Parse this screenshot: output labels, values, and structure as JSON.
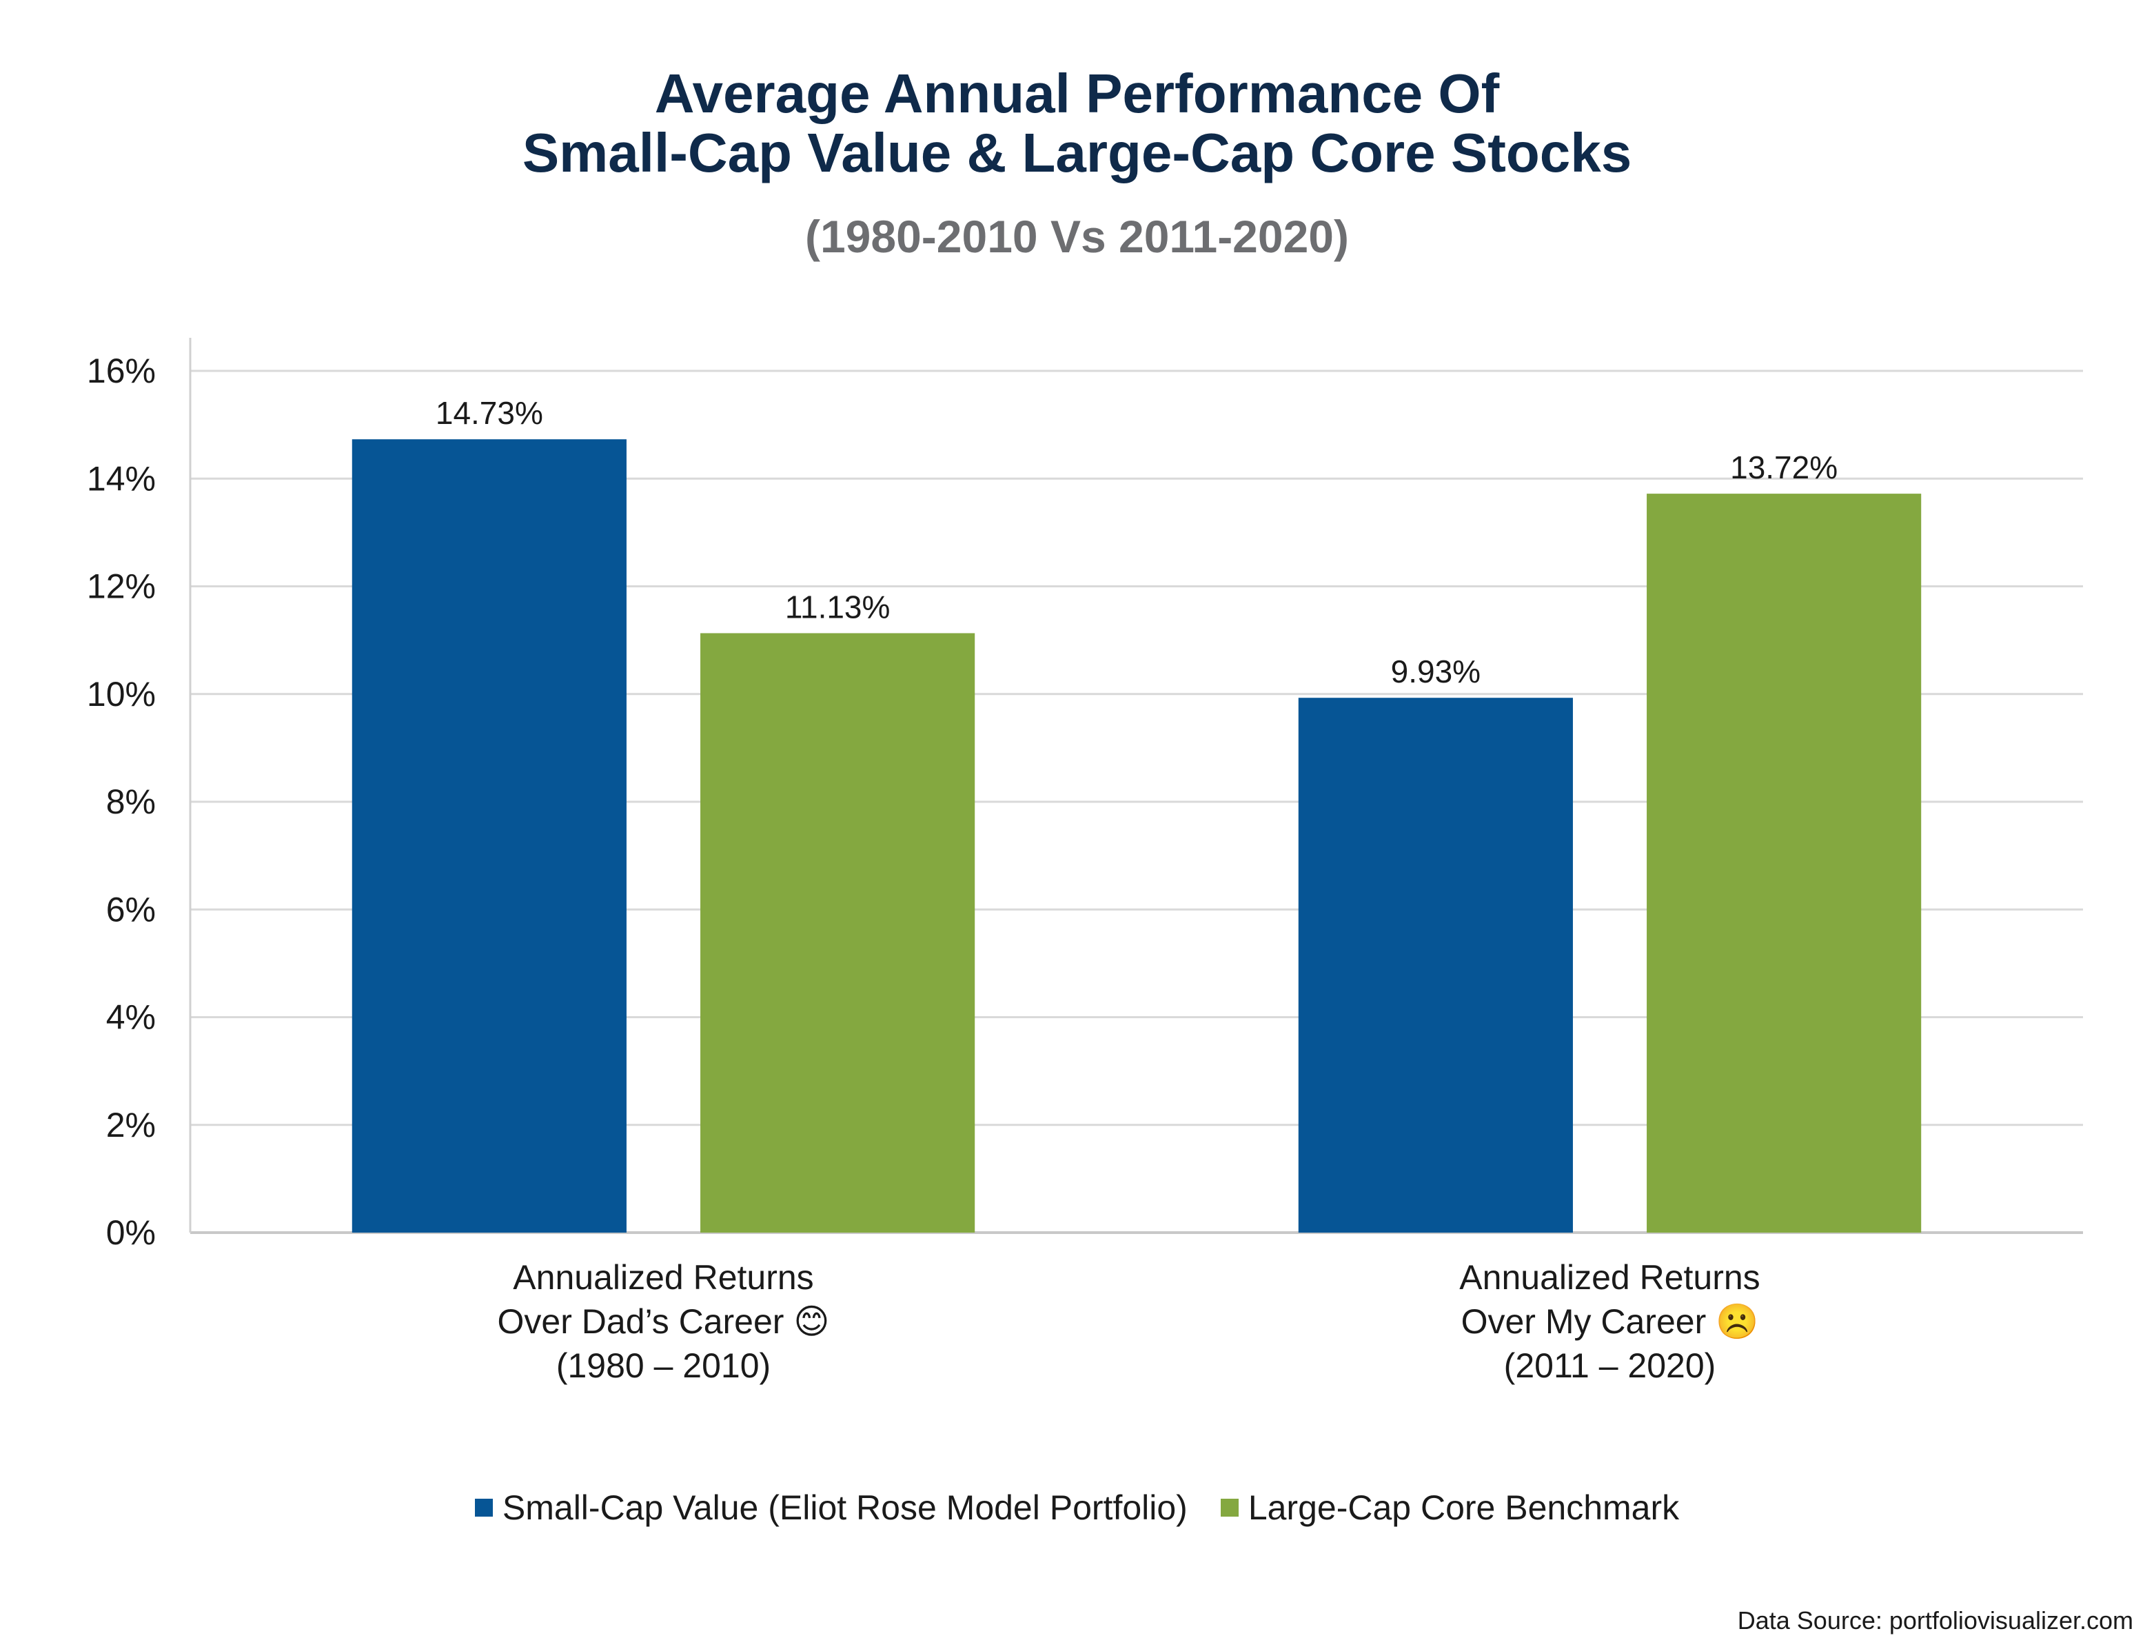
{
  "chart_data": {
    "type": "bar",
    "title_line1": "Average Annual Performance Of",
    "title_line2": "Small-Cap Value & Large-Cap Core Stocks",
    "subtitle": "(1980-2010 Vs 2011-2020)",
    "categories": [
      [
        "Annualized Returns",
        "Over Dad’s Career 😊",
        "(1980 – 2010)"
      ],
      [
        "Annualized Returns",
        "Over My Career ☹️",
        "(2011 – 2020)"
      ]
    ],
    "series": [
      {
        "name": "Small-Cap Value (Eliot Rose Model Portfolio)",
        "color": "#065595",
        "values": [
          14.73,
          9.93
        ],
        "labels": [
          "14.73%",
          "9.93%"
        ]
      },
      {
        "name": "Large-Cap Core Benchmark",
        "color": "#84a840",
        "values": [
          11.13,
          13.72
        ],
        "labels": [
          "11.13%",
          "13.72%"
        ]
      }
    ],
    "ylim": [
      0,
      16
    ],
    "yticks": [
      "0%",
      "2%",
      "4%",
      "6%",
      "8%",
      "10%",
      "12%",
      "14%",
      "16%"
    ],
    "grid": true,
    "legend_position": "bottom-center",
    "source": "Data Source: portfoliovisualizer.com"
  }
}
